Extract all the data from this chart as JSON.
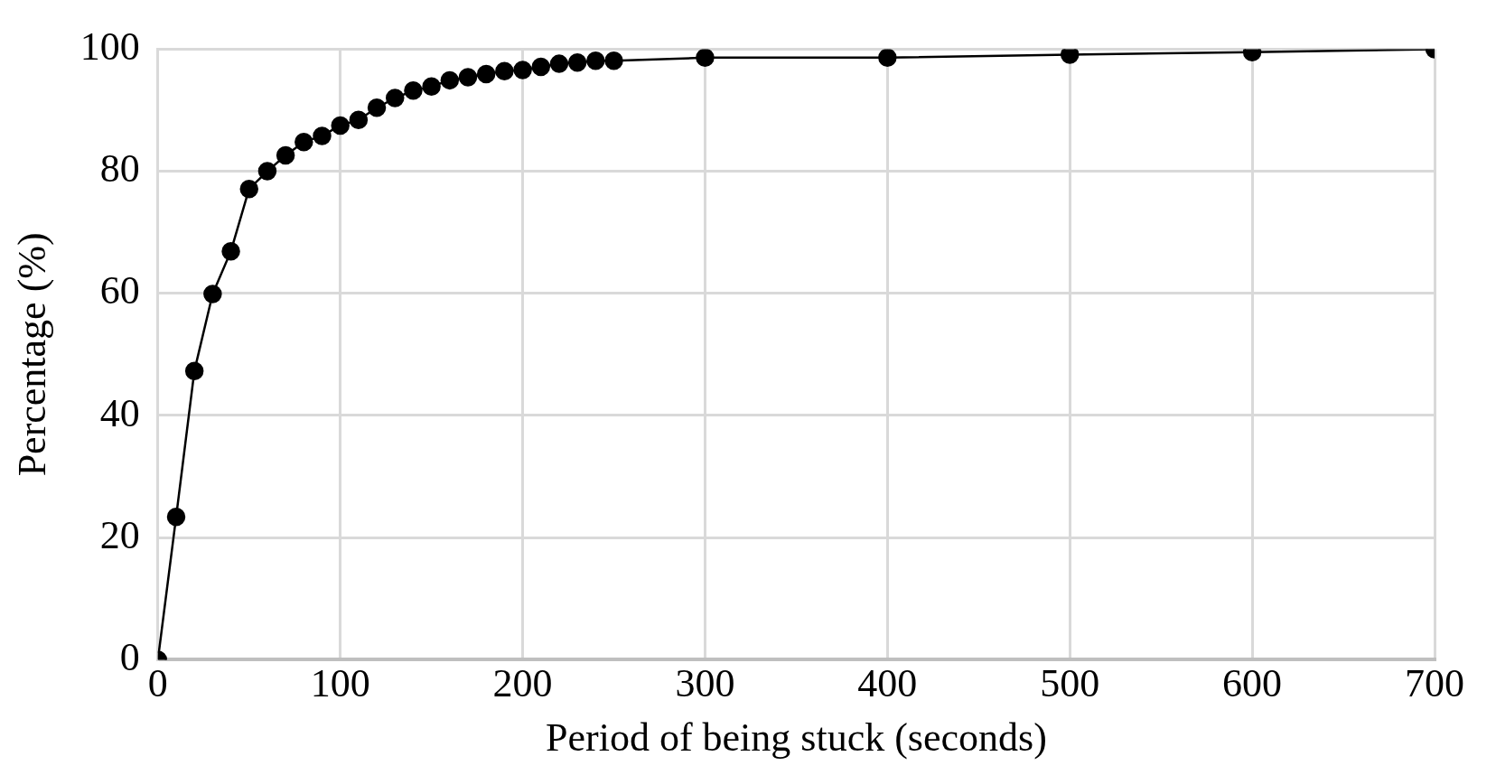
{
  "chart_data": {
    "type": "line",
    "xlabel": "Period of being stuck (seconds)",
    "ylabel": "Percentage (%)",
    "x": [
      0,
      10,
      20,
      30,
      40,
      50,
      60,
      70,
      80,
      90,
      100,
      110,
      120,
      130,
      140,
      150,
      160,
      170,
      180,
      190,
      200,
      210,
      220,
      230,
      240,
      250,
      300,
      400,
      500,
      600,
      700
    ],
    "series": [
      {
        "color": "#000000",
        "values": [
          0,
          23.4,
          47.3,
          59.9,
          66.9,
          77.1,
          80,
          82.6,
          84.8,
          85.8,
          87.5,
          88.4,
          90.4,
          92,
          93.2,
          93.9,
          94.9,
          95.4,
          95.9,
          96.4,
          96.6,
          97.1,
          97.6,
          97.8,
          98.1,
          98.1,
          98.6,
          98.6,
          99.1,
          99.5,
          100
        ]
      }
    ],
    "xlim": [
      0,
      700
    ],
    "xticks": [
      0,
      100,
      200,
      300,
      400,
      500,
      600,
      700
    ],
    "ylim": [
      0,
      100
    ],
    "yticks": [
      0,
      20,
      40,
      60,
      80,
      100
    ],
    "grid": true,
    "marker": "circle",
    "line_style": "solid"
  }
}
